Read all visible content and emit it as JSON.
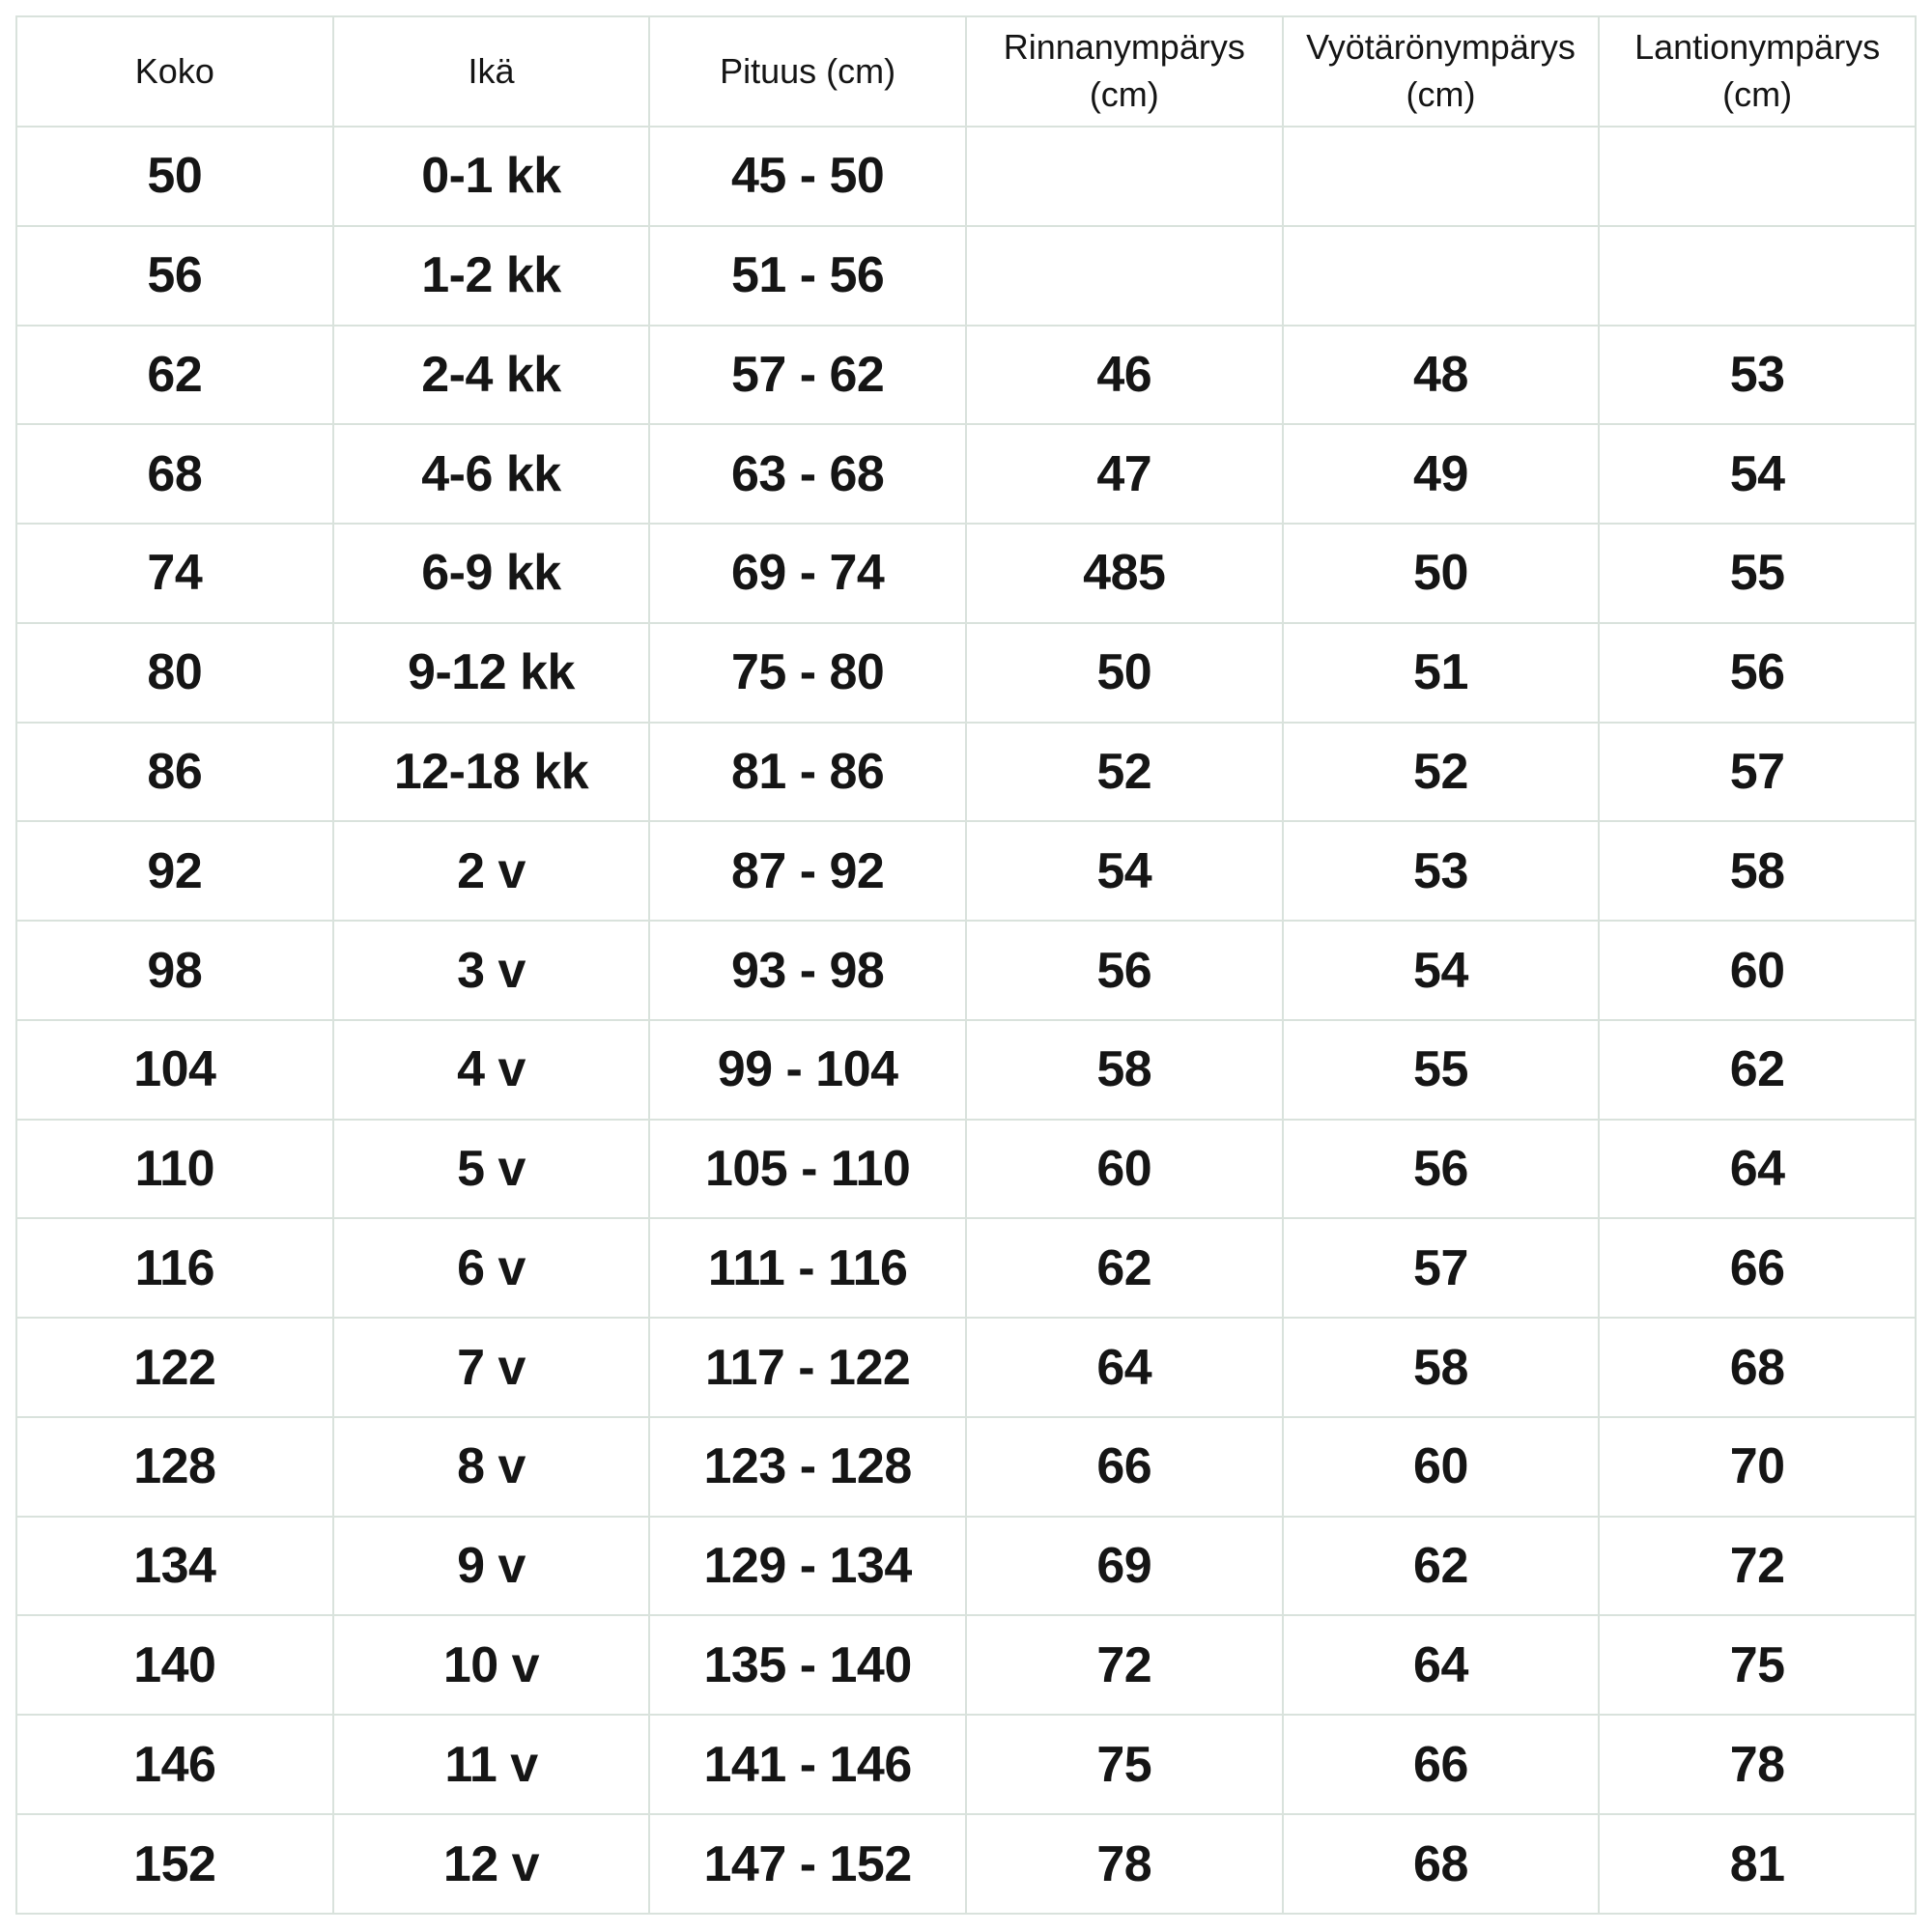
{
  "chart_data": {
    "type": "table",
    "title": "",
    "columns": [
      {
        "key": "koko",
        "label": "Koko",
        "unit": ""
      },
      {
        "key": "ika",
        "label": "Ikä",
        "unit": ""
      },
      {
        "key": "pituus",
        "label": "Pituus (cm)",
        "unit": ""
      },
      {
        "key": "rinta",
        "label": "Rinnanympärys",
        "unit": "(cm)"
      },
      {
        "key": "vyotaro",
        "label": "Vyötärönympärys",
        "unit": "(cm)"
      },
      {
        "key": "lantio",
        "label": "Lantionympärys",
        "unit": "(cm)"
      }
    ],
    "rows": [
      [
        "50",
        "0-1 kk",
        "45 - 50",
        "",
        "",
        ""
      ],
      [
        "56",
        "1-2 kk",
        "51 - 56",
        "",
        "",
        ""
      ],
      [
        "62",
        "2-4 kk",
        "57 - 62",
        "46",
        "48",
        "53"
      ],
      [
        "68",
        "4-6 kk",
        "63 - 68",
        "47",
        "49",
        "54"
      ],
      [
        "74",
        "6-9 kk",
        "69 - 74",
        "485",
        "50",
        "55"
      ],
      [
        "80",
        "9-12 kk",
        "75 - 80",
        "50",
        "51",
        "56"
      ],
      [
        "86",
        "12-18 kk",
        "81 - 86",
        "52",
        "52",
        "57"
      ],
      [
        "92",
        "2 v",
        "87 - 92",
        "54",
        "53",
        "58"
      ],
      [
        "98",
        "3 v",
        "93 - 98",
        "56",
        "54",
        "60"
      ],
      [
        "104",
        "4 v",
        "99 - 104",
        "58",
        "55",
        "62"
      ],
      [
        "110",
        "5 v",
        "105 - 110",
        "60",
        "56",
        "64"
      ],
      [
        "116",
        "6 v",
        "111 - 116",
        "62",
        "57",
        "66"
      ],
      [
        "122",
        "7 v",
        "117 - 122",
        "64",
        "58",
        "68"
      ],
      [
        "128",
        "8 v",
        "123 - 128",
        "66",
        "60",
        "70"
      ],
      [
        "134",
        "9 v",
        "129 - 134",
        "69",
        "62",
        "72"
      ],
      [
        "140",
        "10 v",
        "135 - 140",
        "72",
        "64",
        "75"
      ],
      [
        "146",
        "11 v",
        "141 - 146",
        "75",
        "66",
        "78"
      ],
      [
        "152",
        "12 v",
        "147 - 152",
        "78",
        "68",
        "81"
      ]
    ],
    "layout_hints": {
      "grid": true,
      "header_rows": 1,
      "alignment": "center"
    }
  },
  "colors": {
    "grid_line": "#d9e2dc",
    "text": "#151515",
    "background": "#ffffff"
  }
}
